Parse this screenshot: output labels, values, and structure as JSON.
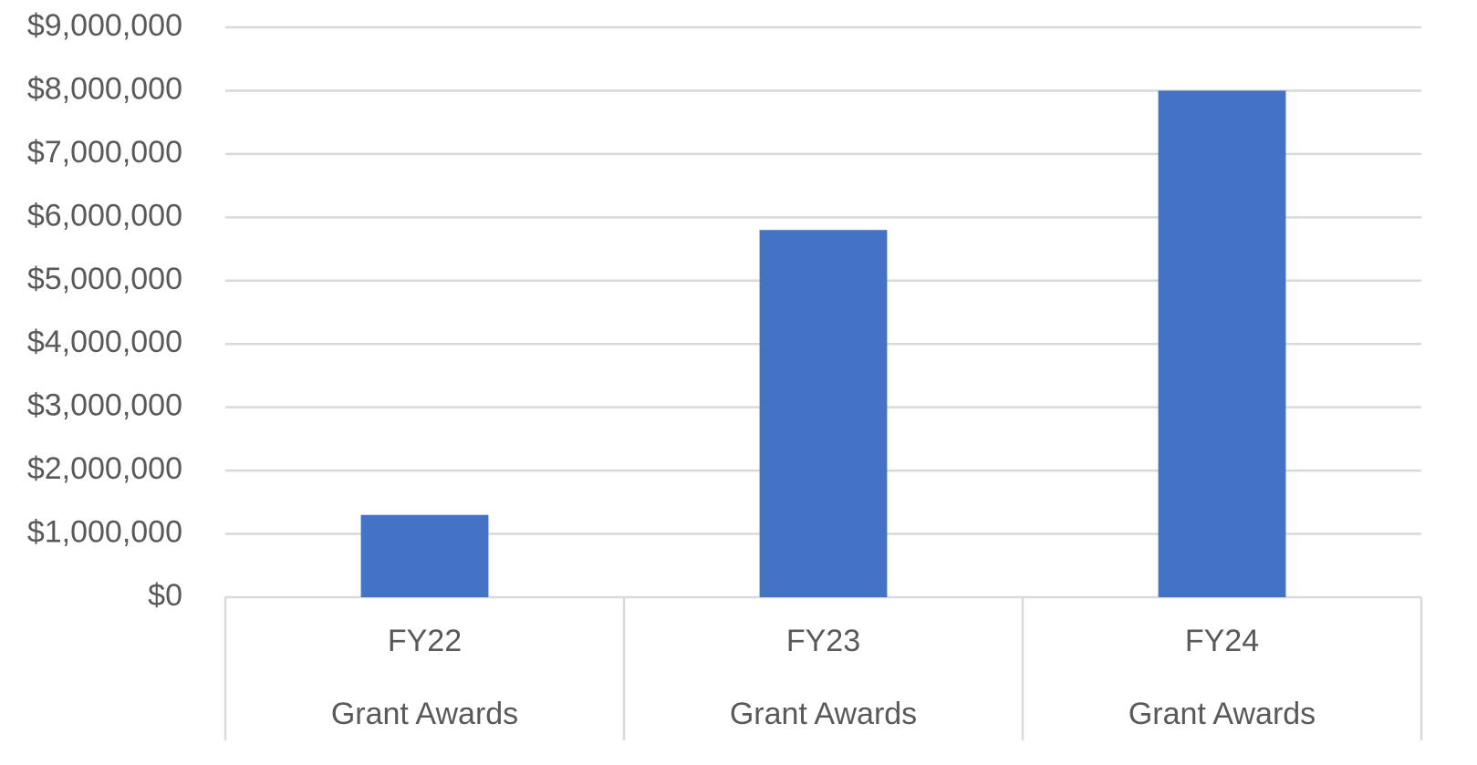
{
  "chart_data": {
    "type": "bar",
    "categories": [
      "FY22",
      "FY23",
      "FY24"
    ],
    "subcategories": [
      "Grant Awards",
      "Grant Awards",
      "Grant Awards"
    ],
    "values": [
      1300000,
      5800000,
      8000000
    ],
    "color": "#4472c4",
    "ylim": [
      0,
      9000000
    ],
    "yticks": [
      {
        "value": 0,
        "label": "$0"
      },
      {
        "value": 1000000,
        "label": "$1,000,000"
      },
      {
        "value": 2000000,
        "label": "$2,000,000"
      },
      {
        "value": 3000000,
        "label": "$3,000,000"
      },
      {
        "value": 4000000,
        "label": "$4,000,000"
      },
      {
        "value": 5000000,
        "label": "$5,000,000"
      },
      {
        "value": 6000000,
        "label": "$6,000,000"
      },
      {
        "value": 7000000,
        "label": "$7,000,000"
      },
      {
        "value": 8000000,
        "label": "$8,000,000"
      },
      {
        "value": 9000000,
        "label": "$9,000,000"
      }
    ],
    "grid": true
  }
}
